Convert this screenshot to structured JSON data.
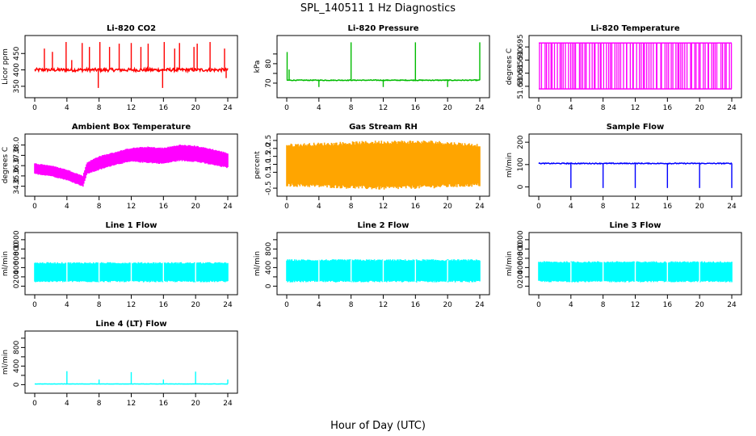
{
  "figure_title": "SPL_140511  1 Hz Diagnostics",
  "x_axis_label": "Hour of Day (UTC)",
  "chart_data": [
    {
      "type": "line",
      "title": "Li-820 CO2",
      "ylabel": "Licor ppm",
      "color": "#ff0000",
      "xlim": [
        0,
        24
      ],
      "xticks": [
        0,
        4,
        8,
        12,
        16,
        20,
        24
      ],
      "ylim": [
        330,
        490
      ],
      "yticks": [
        350,
        400,
        450
      ],
      "ytick_labels": [
        "350",
        "400",
        "450"
      ],
      "baseline": 400,
      "noise": 5,
      "band": 0,
      "spikes": [
        {
          "x": 1.2,
          "v": 465
        },
        {
          "x": 2.2,
          "v": 455
        },
        {
          "x": 3.9,
          "v": 485
        },
        {
          "x": 4.6,
          "v": 430
        },
        {
          "x": 5.9,
          "v": 482
        },
        {
          "x": 6.8,
          "v": 470
        },
        {
          "x": 7.9,
          "v": 345
        },
        {
          "x": 8.1,
          "v": 485
        },
        {
          "x": 9.3,
          "v": 470
        },
        {
          "x": 10.5,
          "v": 480
        },
        {
          "x": 12.0,
          "v": 482
        },
        {
          "x": 13.2,
          "v": 470
        },
        {
          "x": 14.1,
          "v": 480
        },
        {
          "x": 15.9,
          "v": 345
        },
        {
          "x": 16.1,
          "v": 485
        },
        {
          "x": 17.4,
          "v": 465
        },
        {
          "x": 18.0,
          "v": 482
        },
        {
          "x": 19.8,
          "v": 470
        },
        {
          "x": 20.2,
          "v": 480
        },
        {
          "x": 21.8,
          "v": 485
        },
        {
          "x": 23.6,
          "v": 465
        },
        {
          "x": 23.8,
          "v": 375
        }
      ]
    },
    {
      "type": "line",
      "title": "Li-820 Pressure",
      "ylabel": "kPa",
      "color": "#00bb00",
      "xlim": [
        0,
        24
      ],
      "xticks": [
        0,
        4,
        8,
        12,
        16,
        20,
        24
      ],
      "ylim": [
        65,
        92
      ],
      "yticks": [
        70,
        75,
        80,
        85
      ],
      "ytick_labels": [
        "70",
        "",
        "80",
        ""
      ],
      "baseline": 71.5,
      "noise": 0.2,
      "band": 0,
      "spikes": [
        {
          "x": 0.05,
          "v": 86
        },
        {
          "x": 0.3,
          "v": 77
        },
        {
          "x": 4.0,
          "v": 68
        },
        {
          "x": 8.0,
          "v": 91
        },
        {
          "x": 12.0,
          "v": 68
        },
        {
          "x": 16.0,
          "v": 91
        },
        {
          "x": 20.0,
          "v": 68
        },
        {
          "x": 24.0,
          "v": 91
        }
      ]
    },
    {
      "type": "bars",
      "title": "Li-820 Temperature",
      "ylabel": "degrees C",
      "color": "#ff00ff",
      "xlim": [
        0,
        24
      ],
      "xticks": [
        0,
        4,
        8,
        12,
        16,
        20,
        24
      ],
      "ylim": [
        51.6775,
        51.6975
      ],
      "yticks": [
        51.68,
        51.685,
        51.69,
        51.695
      ],
      "ytick_labels": [
        "51.680",
        "51.685",
        "51.690",
        "51.695"
      ],
      "low": 51.679,
      "high": 51.6965
    },
    {
      "type": "band",
      "title": "Ambient Box Temperature",
      "ylabel": "degrees C",
      "color": "#ff00ff",
      "xlim": [
        0,
        24
      ],
      "xticks": [
        0,
        4,
        8,
        12,
        16,
        20,
        24
      ],
      "ylim": [
        33.5,
        38.6
      ],
      "yticks": [
        34,
        35,
        36,
        37,
        38
      ],
      "ytick_labels": [
        "34.0",
        "35.0",
        "36.0",
        "37.0",
        "38.0"
      ],
      "envelope": [
        [
          0,
          35.2,
          36.2
        ],
        [
          2,
          35.0,
          36.0
        ],
        [
          4,
          34.6,
          35.6
        ],
        [
          6,
          34.0,
          35.0
        ],
        [
          6.5,
          35.2,
          36.3
        ],
        [
          8,
          35.6,
          36.9
        ],
        [
          10,
          36.1,
          37.3
        ],
        [
          12,
          36.4,
          37.7
        ],
        [
          14,
          36.3,
          37.8
        ],
        [
          16,
          36.2,
          37.7
        ],
        [
          18,
          36.5,
          38.0
        ],
        [
          20,
          36.4,
          37.9
        ],
        [
          22,
          36.1,
          37.6
        ],
        [
          24,
          35.8,
          37.2
        ]
      ]
    },
    {
      "type": "band",
      "title": "Gas Stream RH",
      "ylabel": "percent",
      "color": "#ffa500",
      "xlim": [
        0,
        24
      ],
      "xticks": [
        0,
        4,
        8,
        12,
        16,
        20,
        24
      ],
      "ylim": [
        -0.7,
        2.6
      ],
      "yticks": [
        -0.5,
        0.5,
        1.0,
        1.5,
        2.0,
        2.5
      ],
      "ytick_labels": [
        "-0.5",
        "0.5",
        "1.0",
        "1.5",
        "2.0",
        "2.5"
      ],
      "envelope": [
        [
          0,
          -0.3,
          2.2
        ],
        [
          6,
          -0.4,
          2.3
        ],
        [
          12,
          -0.5,
          2.4
        ],
        [
          18,
          -0.4,
          2.4
        ],
        [
          24,
          -0.3,
          2.2
        ]
      ]
    },
    {
      "type": "line",
      "title": "Sample Flow",
      "ylabel": "ml/min",
      "color": "#0000ff",
      "xlim": [
        0,
        24
      ],
      "xticks": [
        0,
        4,
        8,
        12,
        16,
        20,
        24
      ],
      "ylim": [
        -20,
        215
      ],
      "yticks": [
        0,
        100,
        200
      ],
      "ytick_labels": [
        "0",
        "100",
        "200"
      ],
      "baseline": 105,
      "noise": 2,
      "band": 0,
      "spikes": [
        {
          "x": 4.0,
          "v": -5
        },
        {
          "x": 8.0,
          "v": -5
        },
        {
          "x": 12.0,
          "v": -5
        },
        {
          "x": 16.0,
          "v": -5
        },
        {
          "x": 20.0,
          "v": -5
        },
        {
          "x": 24.0,
          "v": -5
        }
      ]
    },
    {
      "type": "band",
      "title": "Line 1 Flow",
      "ylabel": "ml/min",
      "color": "#00ffff",
      "xlim": [
        0,
        24
      ],
      "xticks": [
        0,
        4,
        8,
        12,
        16,
        20,
        24
      ],
      "ylim": [
        -80,
        1050
      ],
      "yticks": [
        0,
        200,
        400,
        600,
        800,
        1000
      ],
      "ytick_labels": [
        "0",
        "200",
        "400",
        "600",
        "800",
        "1000"
      ],
      "envelope": [
        [
          0,
          100,
          500
        ],
        [
          24,
          100,
          500
        ]
      ],
      "gaps": [
        4.0,
        8.0,
        12.0,
        16.0,
        20.0
      ]
    },
    {
      "type": "band",
      "title": "Line 2 Flow",
      "ylabel": "ml/min",
      "color": "#00ffff",
      "xlim": [
        0,
        24
      ],
      "xticks": [
        0,
        4,
        8,
        12,
        16,
        20,
        24
      ],
      "ylim": [
        -80,
        1050
      ],
      "yticks": [
        0,
        200,
        400,
        600,
        800,
        1000
      ],
      "ytick_labels": [
        "0",
        "",
        "400",
        "",
        "800",
        ""
      ],
      "envelope": [
        [
          0,
          100,
          560
        ],
        [
          24,
          100,
          560
        ]
      ],
      "gaps": [
        4.0,
        8.0,
        12.0,
        16.0,
        20.0
      ]
    },
    {
      "type": "band",
      "title": "Line 3 Flow",
      "ylabel": "ml/min",
      "color": "#00ffff",
      "xlim": [
        0,
        24
      ],
      "xticks": [
        0,
        4,
        8,
        12,
        16,
        20,
        24
      ],
      "ylim": [
        -80,
        1050
      ],
      "yticks": [
        0,
        200,
        400,
        600,
        800,
        1000
      ],
      "ytick_labels": [
        "0",
        "200",
        "400",
        "600",
        "800",
        "1000"
      ],
      "envelope": [
        [
          0,
          100,
          520
        ],
        [
          24,
          100,
          520
        ]
      ],
      "gaps": [
        4.0,
        8.0,
        12.0,
        16.0,
        20.0
      ]
    },
    {
      "type": "line",
      "title": "Line 4 (LT) Flow",
      "ylabel": "ml/min",
      "color": "#00ffff",
      "xlim": [
        0,
        24
      ],
      "xticks": [
        0,
        4,
        8,
        12,
        16,
        20,
        24
      ],
      "ylim": [
        -80,
        1050
      ],
      "yticks": [
        0,
        200,
        400,
        600,
        800,
        1000
      ],
      "ytick_labels": [
        "0",
        "",
        "400",
        "",
        "800",
        ""
      ],
      "baseline": 15,
      "noise": 2,
      "band": 0,
      "spikes": [
        {
          "x": 4.0,
          "v": 290
        },
        {
          "x": 8.0,
          "v": 110
        },
        {
          "x": 12.0,
          "v": 270
        },
        {
          "x": 16.0,
          "v": 110
        },
        {
          "x": 20.0,
          "v": 280
        },
        {
          "x": 24.0,
          "v": 110
        }
      ]
    }
  ]
}
